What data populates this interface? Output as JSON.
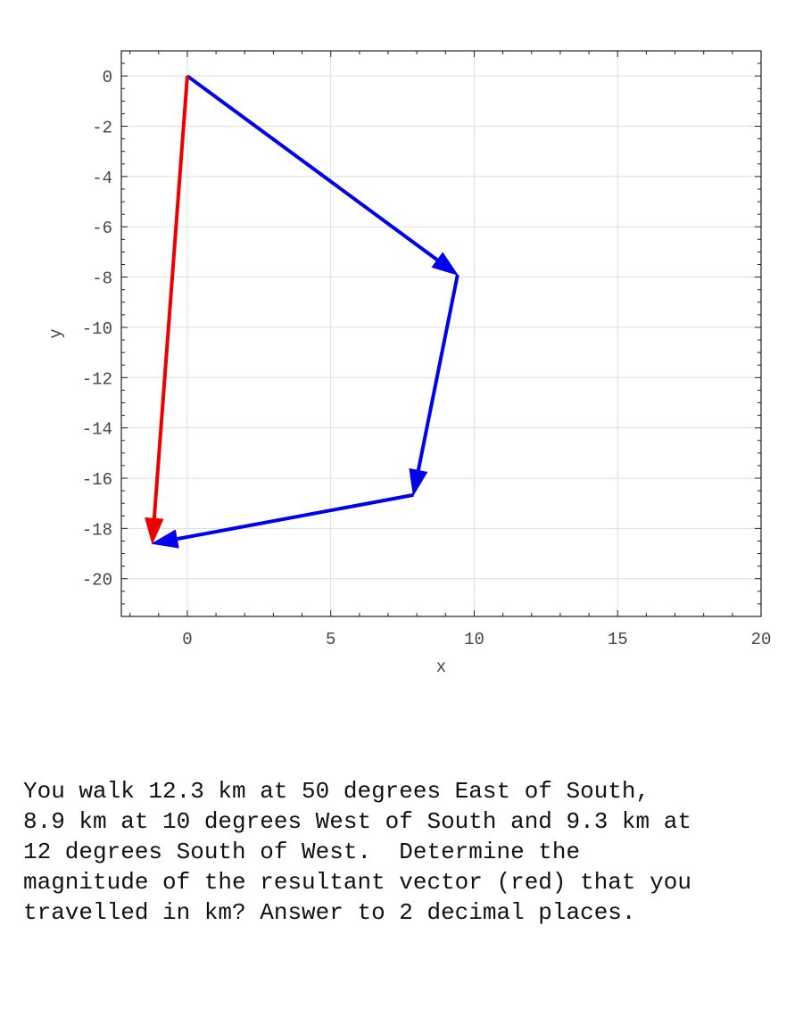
{
  "chart_data": {
    "type": "vector-plot",
    "xlabel": "x",
    "ylabel": "y",
    "xlim": [
      -2.3,
      20
    ],
    "ylim": [
      -21.5,
      1
    ],
    "xticks": [
      0,
      5,
      10,
      15,
      20
    ],
    "yticks": [
      0,
      -2,
      -4,
      -6,
      -8,
      -10,
      -12,
      -14,
      -16,
      -18,
      -20
    ],
    "grid": true,
    "vectors": [
      {
        "from": [
          0,
          0
        ],
        "to": [
          9.42,
          -7.91
        ],
        "color": "#0000ee"
      },
      {
        "from": [
          9.42,
          -7.91
        ],
        "to": [
          7.88,
          -16.67
        ],
        "color": "#0000ee"
      },
      {
        "from": [
          7.88,
          -16.67
        ],
        "to": [
          -1.22,
          -18.6
        ],
        "color": "#0000ee"
      },
      {
        "from": [
          0,
          0
        ],
        "to": [
          -1.22,
          -18.6
        ],
        "color": "#ee0000"
      }
    ]
  },
  "question_lines": [
    "You walk 12.3 km at 50 degrees East of South,",
    "8.9 km at 10 degrees West of South and 9.3 km at",
    "12 degrees South of West.  Determine the",
    "magnitude of the resultant vector (red) that you",
    "travelled in km? Answer to 2 decimal places."
  ]
}
